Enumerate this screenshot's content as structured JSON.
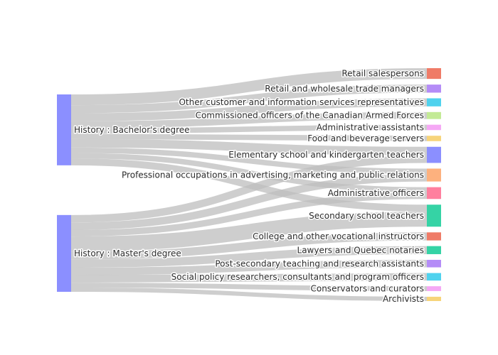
{
  "chart_data": {
    "type": "sankey",
    "title": "",
    "sources": [
      {
        "name": "History : Bachelor's degree",
        "color": "#8b8fff"
      },
      {
        "name": "History : Master's degree",
        "color": "#8b8fff"
      }
    ],
    "targets": [
      {
        "name": "Retail salespersons",
        "color": "#ef7b67"
      },
      {
        "name": "Retail and wholesale trade managers",
        "color": "#b48cf7"
      },
      {
        "name": "Other customer and information services representatives",
        "color": "#4fd2ee"
      },
      {
        "name": "Commissioned officers of the Canadian Armed Forces",
        "color": "#c3ea95"
      },
      {
        "name": "Administrative assistants",
        "color": "#f5a8f5"
      },
      {
        "name": "Food and beverage servers",
        "color": "#f7d47a"
      },
      {
        "name": "Elementary school and kindergarten teachers",
        "color": "#8b8fff"
      },
      {
        "name": "Professional occupations in advertising, marketing and public relations",
        "color": "#fdb17e"
      },
      {
        "name": "Administrative officers",
        "color": "#ff7f9e"
      },
      {
        "name": "Secondary school teachers",
        "color": "#35d3a5"
      },
      {
        "name": "College and other vocational instructors",
        "color": "#ef7b67"
      },
      {
        "name": "Lawyers and Quebec notaries",
        "color": "#35d3a5"
      },
      {
        "name": "Post-secondary teaching and research assistants",
        "color": "#b48cf7"
      },
      {
        "name": "Social policy researchers, consultants and program officers",
        "color": "#4fd2ee"
      },
      {
        "name": "Conservators and curators",
        "color": "#f5a8f5"
      },
      {
        "name": "Archivists",
        "color": "#f7d47a"
      }
    ],
    "links": [
      {
        "source": 0,
        "target": 0,
        "value": 2
      },
      {
        "source": 0,
        "target": 1,
        "value": 1.5
      },
      {
        "source": 0,
        "target": 2,
        "value": 1.5
      },
      {
        "source": 0,
        "target": 3,
        "value": 1.3
      },
      {
        "source": 0,
        "target": 4,
        "value": 1
      },
      {
        "source": 0,
        "target": 5,
        "value": 1
      },
      {
        "source": 0,
        "target": 6,
        "value": 1.6
      },
      {
        "source": 0,
        "target": 7,
        "value": 1
      },
      {
        "source": 0,
        "target": 8,
        "value": 1
      },
      {
        "source": 0,
        "target": 9,
        "value": 1.3
      },
      {
        "source": 1,
        "target": 6,
        "value": 1.4
      },
      {
        "source": 1,
        "target": 7,
        "value": 1.4
      },
      {
        "source": 1,
        "target": 8,
        "value": 1.2
      },
      {
        "source": 1,
        "target": 9,
        "value": 2.8
      },
      {
        "source": 1,
        "target": 10,
        "value": 1.5
      },
      {
        "source": 1,
        "target": 11,
        "value": 1.5
      },
      {
        "source": 1,
        "target": 12,
        "value": 1.4
      },
      {
        "source": 1,
        "target": 13,
        "value": 1.4
      },
      {
        "source": 1,
        "target": 14,
        "value": 0.9
      },
      {
        "source": 1,
        "target": 15,
        "value": 0.8
      }
    ]
  }
}
